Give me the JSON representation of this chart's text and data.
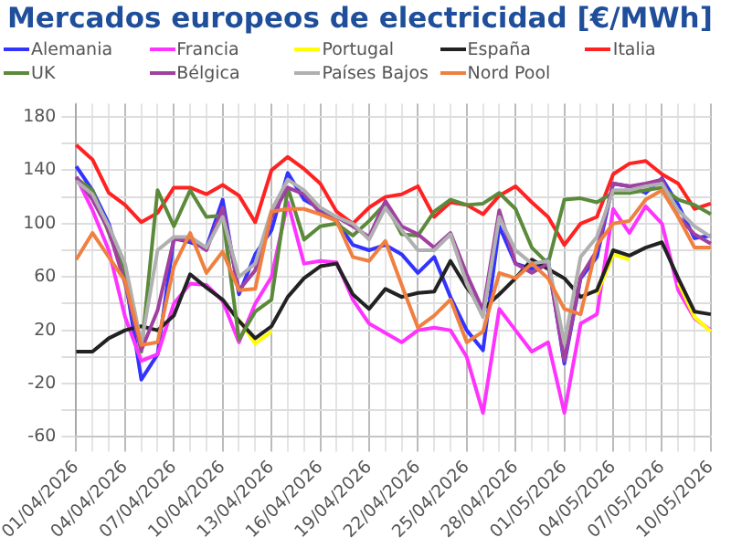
{
  "chart_data": {
    "type": "line",
    "title": "Mercados europeos de electricidad [€/MWh]",
    "categories": [
      "01/04/2026",
      null,
      null,
      "04/04/2026",
      null,
      null,
      "07/04/2026",
      null,
      null,
      "10/04/2026",
      null,
      null,
      "13/04/2026",
      null,
      null,
      "16/04/2026",
      null,
      null,
      "19/04/2026",
      null,
      null,
      "22/04/2026",
      null,
      null,
      "25/04/2026",
      null,
      null,
      "28/04/2026",
      null,
      null,
      "01/05/2026",
      null,
      null,
      "04/05/2026",
      null,
      null,
      "07/05/2026",
      null,
      null,
      "10/05/2026"
    ],
    "series": [
      {
        "name": "Alemania",
        "color": "#3333ff",
        "values": [
          143,
          125,
          100,
          60,
          -17,
          2,
          89,
          86,
          82,
          118,
          47,
          77,
          95,
          138,
          118,
          111,
          102,
          84,
          80,
          84,
          77,
          63,
          75,
          45,
          20,
          5,
          98,
          70,
          66,
          73,
          -5,
          59,
          75,
          130,
          128,
          123,
          134,
          114,
          89,
          91
        ]
      },
      {
        "name": "Francia",
        "color": "#ff33ff",
        "values": [
          135,
          110,
          80,
          30,
          -3,
          2,
          40,
          55,
          54,
          42,
          11,
          40,
          60,
          116,
          70,
          72,
          71,
          43,
          25,
          18,
          11,
          20,
          22,
          20,
          0,
          -42,
          36,
          20,
          4,
          11,
          -42,
          25,
          32,
          111,
          93,
          113,
          100,
          50,
          29,
          20
        ]
      },
      {
        "name": "Portugal",
        "color": "#ffff00",
        "values": [
          null,
          null,
          null,
          null,
          null,
          null,
          null,
          null,
          null,
          null,
          28,
          10,
          19,
          null,
          null,
          null,
          null,
          null,
          null,
          null,
          null,
          null,
          null,
          null,
          null,
          null,
          null,
          null,
          null,
          null,
          null,
          null,
          47,
          77,
          73,
          null,
          null,
          56,
          30,
          19
        ]
      },
      {
        "name": "España",
        "color": "#222222",
        "values": [
          4,
          4,
          14,
          20,
          23,
          20,
          31,
          62,
          52,
          43,
          27,
          14,
          23,
          45,
          59,
          68,
          70,
          47,
          36,
          51,
          45,
          48,
          49,
          72,
          52,
          36,
          47,
          59,
          73,
          66,
          59,
          45,
          50,
          80,
          76,
          82,
          86,
          59,
          34,
          32
        ]
      },
      {
        "name": "Italia",
        "color": "#ff2222",
        "values": [
          159,
          148,
          123,
          114,
          101,
          108,
          127,
          127,
          122,
          129,
          121,
          101,
          140,
          150,
          141,
          130,
          109,
          100,
          112,
          120,
          122,
          128,
          105,
          116,
          114,
          107,
          121,
          128,
          116,
          105,
          84,
          100,
          105,
          137,
          145,
          147,
          137,
          130,
          111,
          115
        ]
      },
      {
        "name": "UK",
        "color": "#5a8a3a",
        "values": [
          134,
          125,
          93,
          63,
          4,
          125,
          98,
          125,
          105,
          106,
          13,
          34,
          43,
          127,
          88,
          98,
          100,
          91,
          102,
          115,
          92,
          91,
          109,
          118,
          114,
          115,
          123,
          111,
          82,
          70,
          118,
          119,
          116,
          123,
          123,
          125,
          127,
          118,
          114,
          107
        ]
      },
      {
        "name": "Bélgica",
        "color": "#a040a0",
        "values": [
          135,
          118,
          95,
          55,
          5,
          35,
          88,
          88,
          80,
          112,
          50,
          65,
          105,
          127,
          122,
          108,
          105,
          98,
          90,
          117,
          98,
          92,
          82,
          93,
          62,
          35,
          110,
          70,
          63,
          70,
          -3,
          60,
          80,
          130,
          128,
          130,
          133,
          105,
          92,
          85
        ]
      },
      {
        "name": "Países Bajos",
        "color": "#b0b0b0",
        "values": [
          132,
          122,
          98,
          70,
          10,
          80,
          90,
          90,
          82,
          105,
          60,
          70,
          110,
          133,
          125,
          112,
          105,
          100,
          88,
          112,
          95,
          80,
          80,
          92,
          55,
          30,
          105,
          80,
          70,
          72,
          10,
          75,
          90,
          125,
          125,
          128,
          130,
          110,
          98,
          90
        ]
      },
      {
        "name": "Nord Pool",
        "color": "#f08040",
        "values": [
          73,
          93,
          75,
          57,
          9,
          11,
          68,
          93,
          63,
          79,
          50,
          51,
          109,
          111,
          111,
          107,
          102,
          75,
          72,
          87,
          54,
          22,
          31,
          43,
          11,
          19,
          63,
          59,
          70,
          59,
          36,
          32,
          84,
          100,
          102,
          118,
          125,
          105,
          82,
          82
        ]
      }
    ],
    "ylim": [
      -60,
      190
    ],
    "yticks": [
      -60,
      {
        "value": -40,
        "label": null
      },
      -20,
      {
        "value": 0,
        "label": null
      },
      20,
      {
        "value": 40,
        "label": null
      },
      60,
      {
        "value": 80,
        "label": null
      },
      100,
      {
        "value": 120,
        "label": null
      },
      140,
      {
        "value": 160,
        "label": null
      },
      180
    ],
    "grid": true,
    "legend": "top",
    "marker": "none",
    "line_style": "solid"
  }
}
